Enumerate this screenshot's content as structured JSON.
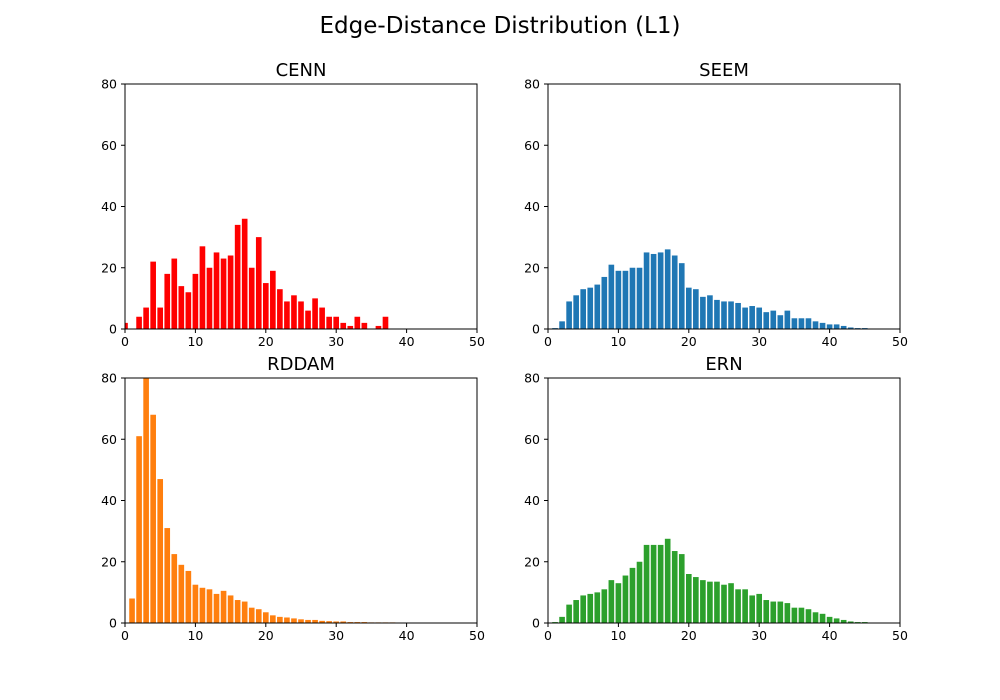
{
  "figure": {
    "title": "Edge-Distance Distribution (L1)"
  },
  "chart_data": [
    {
      "type": "bar",
      "title": "CENN",
      "xlabel": "",
      "ylabel": "",
      "xlim": [
        0,
        50
      ],
      "ylim": [
        0,
        80
      ],
      "xticks": [
        0,
        10,
        20,
        30,
        40,
        50
      ],
      "yticks": [
        0,
        20,
        40,
        60,
        80
      ],
      "grid": false,
      "color": "#ff0000",
      "x": [
        0,
        1,
        2,
        3,
        4,
        5,
        6,
        7,
        8,
        9,
        10,
        11,
        12,
        13,
        14,
        15,
        16,
        17,
        18,
        19,
        20,
        21,
        22,
        23,
        24,
        25,
        26,
        27,
        28,
        29,
        30,
        31,
        32,
        33,
        34,
        35,
        36,
        37,
        38,
        39,
        40,
        41,
        42,
        43,
        44,
        45,
        46,
        47,
        48,
        49
      ],
      "values": [
        2,
        0,
        4,
        7,
        22,
        7,
        18,
        23,
        14,
        12,
        18,
        27,
        20,
        25,
        23,
        24,
        34,
        36,
        20,
        30,
        15,
        19,
        13,
        9,
        11,
        9,
        6,
        10,
        7,
        4,
        4,
        2,
        1,
        4,
        2,
        0,
        1,
        4,
        0,
        0,
        0,
        0,
        0,
        0,
        0,
        0,
        0,
        0,
        0,
        0
      ]
    },
    {
      "type": "bar",
      "title": "SEEM",
      "xlabel": "",
      "ylabel": "",
      "xlim": [
        0,
        50
      ],
      "ylim": [
        0,
        80
      ],
      "xticks": [
        0,
        10,
        20,
        30,
        40,
        50
      ],
      "yticks": [
        0,
        20,
        40,
        60,
        80
      ],
      "grid": false,
      "color": "#1f77b4",
      "x": [
        0,
        1,
        2,
        3,
        4,
        5,
        6,
        7,
        8,
        9,
        10,
        11,
        12,
        13,
        14,
        15,
        16,
        17,
        18,
        19,
        20,
        21,
        22,
        23,
        24,
        25,
        26,
        27,
        28,
        29,
        30,
        31,
        32,
        33,
        34,
        35,
        36,
        37,
        38,
        39,
        40,
        41,
        42,
        43,
        44,
        45,
        46,
        47,
        48,
        49
      ],
      "values": [
        0,
        0.3,
        2.5,
        9,
        11,
        13,
        13.5,
        14.5,
        17,
        21,
        19,
        19,
        20,
        20,
        25,
        24.5,
        25,
        26,
        24,
        21.5,
        13.5,
        13,
        10.5,
        11,
        9.5,
        9,
        9,
        8.5,
        7,
        7.5,
        7,
        5.5,
        6,
        4.5,
        6,
        3.5,
        3.5,
        3.5,
        2.5,
        2,
        1.5,
        1.5,
        1,
        0.5,
        0.3,
        0.3,
        0,
        0,
        0,
        0
      ]
    },
    {
      "type": "bar",
      "title": "RDDAM",
      "xlabel": "",
      "ylabel": "",
      "xlim": [
        0,
        50
      ],
      "ylim": [
        0,
        80
      ],
      "xticks": [
        0,
        10,
        20,
        30,
        40,
        50
      ],
      "yticks": [
        0,
        20,
        40,
        60,
        80
      ],
      "grid": false,
      "color": "#ff7f0e",
      "x": [
        0,
        1,
        2,
        3,
        4,
        5,
        6,
        7,
        8,
        9,
        10,
        11,
        12,
        13,
        14,
        15,
        16,
        17,
        18,
        19,
        20,
        21,
        22,
        23,
        24,
        25,
        26,
        27,
        28,
        29,
        30,
        31,
        32,
        33,
        34,
        35,
        36,
        37,
        38,
        39,
        40,
        41,
        42,
        43,
        44,
        45,
        46,
        47,
        48,
        49
      ],
      "values": [
        0,
        8,
        61,
        80,
        68,
        47,
        31,
        22.5,
        19,
        17,
        12.5,
        11.5,
        11,
        9.5,
        10.5,
        9,
        7.5,
        7,
        5,
        4.5,
        3.5,
        2.5,
        2,
        1.8,
        1.5,
        1.2,
        1,
        1,
        0.7,
        0.6,
        0.5,
        0.5,
        0.3,
        0.3,
        0.3,
        0.2,
        0.2,
        0.2,
        0.2,
        0,
        0,
        0,
        0,
        0,
        0,
        0,
        0,
        0,
        0,
        0
      ]
    },
    {
      "type": "bar",
      "title": "ERN",
      "xlabel": "",
      "ylabel": "",
      "xlim": [
        0,
        50
      ],
      "ylim": [
        0,
        80
      ],
      "xticks": [
        0,
        10,
        20,
        30,
        40,
        50
      ],
      "yticks": [
        0,
        20,
        40,
        60,
        80
      ],
      "grid": false,
      "color": "#2ca02c",
      "x": [
        0,
        1,
        2,
        3,
        4,
        5,
        6,
        7,
        8,
        9,
        10,
        11,
        12,
        13,
        14,
        15,
        16,
        17,
        18,
        19,
        20,
        21,
        22,
        23,
        24,
        25,
        26,
        27,
        28,
        29,
        30,
        31,
        32,
        33,
        34,
        35,
        36,
        37,
        38,
        39,
        40,
        41,
        42,
        43,
        44,
        45,
        46,
        47,
        48,
        49
      ],
      "values": [
        0,
        0.3,
        2,
        6,
        7.5,
        9,
        9.5,
        10,
        11,
        14,
        13,
        15.5,
        18,
        20,
        25.5,
        25.5,
        25.5,
        27.5,
        23.5,
        22.5,
        16,
        15,
        14,
        13.5,
        13.5,
        12.5,
        13,
        11,
        11,
        9,
        9.5,
        7.5,
        7,
        7,
        6.5,
        5,
        5,
        4.5,
        3.5,
        3,
        2,
        1.5,
        1,
        0.5,
        0.3,
        0.3,
        0,
        0,
        0,
        0
      ]
    }
  ]
}
